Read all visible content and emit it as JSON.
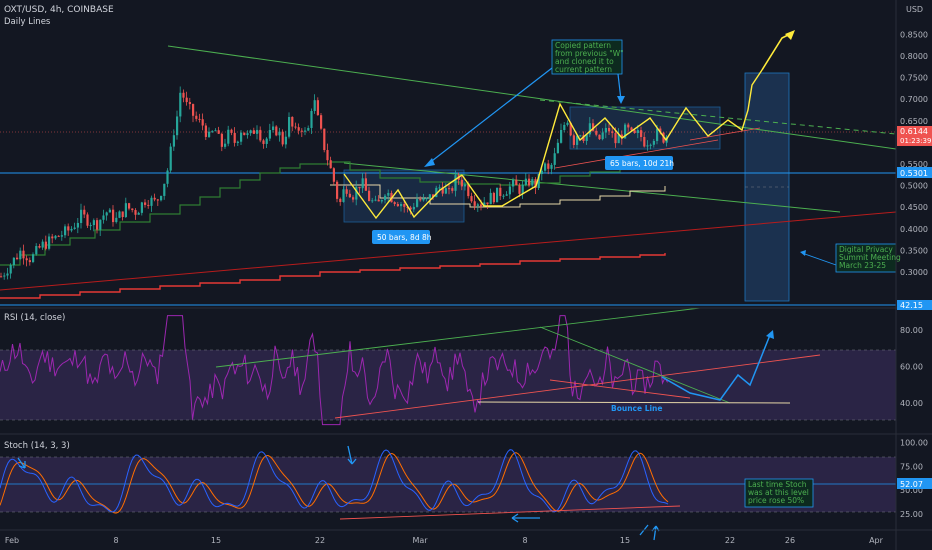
{
  "header": {
    "symbol": "OXT/USD, 4h, COINBASE",
    "study": "Daily Lines",
    "currency": "USD"
  },
  "rsi_label": "RSI (14, close)",
  "stoch_label": "Stoch (14, 3, 3)",
  "chart_data": [
    {
      "type": "candlestick",
      "title": "OXT/USD, 4h, COINBASE",
      "y_ticks": [
        "0.8500",
        "0.8000",
        "0.7500",
        "0.7000",
        "0.6500",
        "0.6000",
        "0.5500",
        "0.5000",
        "0.4500",
        "0.4000",
        "0.3500",
        "0.3000"
      ],
      "y_range": [
        0.27,
        0.86
      ],
      "x_ticks": [
        "Feb",
        "8",
        "15",
        "22",
        "Mar",
        "8",
        "15",
        "22",
        "26",
        "Apr"
      ],
      "last_price": "0.6144",
      "countdown": "01:23:39",
      "level_price": "0.5301",
      "rsi_edge_value": "42.15",
      "price_path": [
        [
          0,
          0.29
        ],
        [
          10,
          0.32
        ],
        [
          20,
          0.35
        ],
        [
          30,
          0.33
        ],
        [
          40,
          0.36
        ],
        [
          55,
          0.38
        ],
        [
          70,
          0.4
        ],
        [
          80,
          0.43
        ],
        [
          95,
          0.41
        ],
        [
          105,
          0.44
        ],
        [
          115,
          0.42
        ],
        [
          125,
          0.45
        ],
        [
          135,
          0.44
        ],
        [
          145,
          0.47
        ],
        [
          155,
          0.46
        ],
        [
          162,
          0.5
        ],
        [
          168,
          0.55
        ],
        [
          172,
          0.62
        ],
        [
          176,
          0.66
        ],
        [
          180,
          0.73
        ],
        [
          184,
          0.69
        ],
        [
          190,
          0.67
        ],
        [
          196,
          0.65
        ],
        [
          202,
          0.64
        ],
        [
          208,
          0.61
        ],
        [
          214,
          0.63
        ],
        [
          220,
          0.59
        ],
        [
          228,
          0.62
        ],
        [
          234,
          0.6
        ],
        [
          240,
          0.63
        ],
        [
          248,
          0.61
        ],
        [
          256,
          0.64
        ],
        [
          262,
          0.6
        ],
        [
          270,
          0.62
        ],
        [
          276,
          0.63
        ],
        [
          282,
          0.6
        ],
        [
          288,
          0.65
        ],
        [
          294,
          0.62
        ],
        [
          300,
          0.64
        ],
        [
          306,
          0.61
        ],
        [
          312,
          0.71
        ],
        [
          316,
          0.66
        ],
        [
          322,
          0.6
        ],
        [
          328,
          0.55
        ],
        [
          334,
          0.5
        ],
        [
          338,
          0.45
        ],
        [
          344,
          0.5
        ],
        [
          352,
          0.48
        ],
        [
          360,
          0.51
        ],
        [
          368,
          0.47
        ],
        [
          376,
          0.45
        ],
        [
          384,
          0.49
        ],
        [
          392,
          0.47
        ],
        [
          400,
          0.46
        ],
        [
          408,
          0.44
        ],
        [
          416,
          0.47
        ],
        [
          424,
          0.46
        ],
        [
          432,
          0.48
        ],
        [
          440,
          0.5
        ],
        [
          448,
          0.48
        ],
        [
          456,
          0.52
        ],
        [
          464,
          0.5
        ],
        [
          472,
          0.47
        ],
        [
          480,
          0.46
        ],
        [
          488,
          0.47
        ],
        [
          496,
          0.48
        ],
        [
          504,
          0.49
        ],
        [
          512,
          0.5
        ],
        [
          520,
          0.49
        ],
        [
          528,
          0.51
        ],
        [
          536,
          0.5
        ],
        [
          542,
          0.55
        ],
        [
          548,
          0.53
        ],
        [
          554,
          0.57
        ],
        [
          560,
          0.62
        ],
        [
          566,
          0.66
        ],
        [
          572,
          0.6
        ],
        [
          578,
          0.63
        ],
        [
          584,
          0.61
        ],
        [
          590,
          0.64
        ],
        [
          596,
          0.6
        ],
        [
          602,
          0.62
        ],
        [
          608,
          0.63
        ],
        [
          614,
          0.6
        ],
        [
          620,
          0.62
        ],
        [
          626,
          0.63
        ],
        [
          632,
          0.61
        ],
        [
          638,
          0.62
        ],
        [
          644,
          0.6
        ],
        [
          650,
          0.61
        ],
        [
          656,
          0.62
        ],
        [
          662,
          0.61
        ],
        [
          668,
          0.62
        ]
      ]
    },
    {
      "type": "line",
      "title": "RSI (14, close)",
      "y_ticks": [
        "80.00",
        "60.00",
        "40.00"
      ],
      "y_range": [
        25,
        90
      ]
    },
    {
      "type": "line",
      "title": "Stoch (14, 3, 3)",
      "y_ticks": [
        "100.00",
        "75.00",
        "50.00",
        "25.00"
      ],
      "y_range": [
        10,
        105
      ],
      "last_value": "52.07"
    }
  ],
  "annotations": {
    "pattern_note": [
      "Copied pattern",
      "from previous \"W\"",
      "and cloned it to",
      "current pattern"
    ],
    "bars_left": "50 bars, 8d 8h",
    "bars_right": "65 bars, 10d 21h",
    "event_note": [
      "Digital Privacy",
      "Summit Meeting",
      "March 23-25"
    ],
    "bounce_line": "Bounce Line",
    "stoch_note": [
      "Last time Stoch",
      "was at this level",
      "price rose 50%"
    ]
  },
  "colors": {
    "background": "#131722",
    "up": "#26a69a",
    "down": "#ef5350",
    "accent_blue": "#2196f3",
    "pattern_yellow": "#ffeb3b",
    "rsi_line": "#9c27b0",
    "stoch_k": "#2962ff",
    "stoch_d": "#ff6d00"
  }
}
